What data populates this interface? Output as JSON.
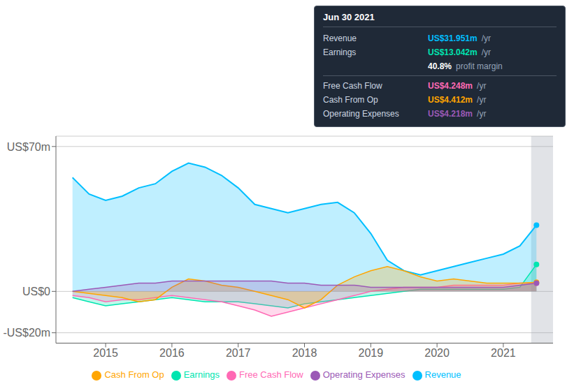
{
  "chart_data": {
    "type": "area",
    "x": [
      2014.5,
      2014.75,
      2015.0,
      2015.25,
      2015.5,
      2015.75,
      2016.0,
      2016.25,
      2016.5,
      2016.75,
      2017.0,
      2017.25,
      2017.5,
      2017.75,
      2018.0,
      2018.25,
      2018.5,
      2018.75,
      2019.0,
      2019.25,
      2019.5,
      2019.75,
      2020.0,
      2020.25,
      2020.5,
      2020.75,
      2021.0,
      2021.25,
      2021.5
    ],
    "series": [
      {
        "name": "Revenue",
        "color": "#00bfff",
        "values": [
          55,
          47,
          44,
          46,
          50,
          52,
          58,
          62,
          60,
          56,
          50,
          42,
          40,
          38,
          40,
          42,
          43,
          38,
          28,
          15,
          10,
          8,
          10,
          12,
          14,
          16,
          18,
          22,
          32
        ]
      },
      {
        "name": "Earnings",
        "color": "#00e5b0",
        "values": [
          -3,
          -5,
          -7,
          -6,
          -5,
          -4,
          -3,
          -4,
          -5,
          -5,
          -5,
          -6,
          -7,
          -8,
          -6,
          -5,
          -4,
          -3,
          -2,
          -1,
          0,
          1,
          1,
          1,
          1,
          1,
          1,
          2,
          13
        ]
      },
      {
        "name": "Free Cash Flow",
        "color": "#ff69b4",
        "values": [
          -2,
          -3,
          -5,
          -4,
          -4,
          -3,
          -2,
          -3,
          -4,
          -5,
          -7,
          -9,
          -12,
          -10,
          -8,
          -6,
          -4,
          -2,
          0,
          1,
          2,
          2,
          2,
          3,
          3,
          3,
          3,
          4,
          4
        ]
      },
      {
        "name": "Cash From Op",
        "color": "#ffa500",
        "values": [
          0,
          -1,
          -2,
          -3,
          -5,
          -4,
          2,
          6,
          5,
          3,
          2,
          0,
          -2,
          -4,
          -8,
          -4,
          3,
          7,
          10,
          12,
          10,
          7,
          5,
          6,
          5,
          4,
          4,
          4,
          4.4
        ]
      },
      {
        "name": "Operating Expenses",
        "color": "#9b59b6",
        "values": [
          0,
          1,
          2,
          3,
          4,
          4,
          5,
          5,
          5,
          5,
          5,
          5,
          5,
          4,
          4,
          3,
          3,
          3,
          2,
          2,
          2,
          2,
          2,
          2,
          2,
          2,
          2,
          3,
          4
        ]
      }
    ],
    "xlim": [
      2014.25,
      2021.75
    ],
    "xticks": [
      2015,
      2016,
      2017,
      2018,
      2019,
      2020,
      2021
    ],
    "ylim": [
      -25,
      75
    ],
    "yticks": [
      {
        "value": -20,
        "label": "-US$20m"
      },
      {
        "value": 0,
        "label": "US$0"
      },
      {
        "value": 70,
        "label": "US$70m"
      }
    ],
    "grid": true,
    "highlight_xrange": [
      2021.42,
      2021.75
    ],
    "tooltip_box": {
      "title": "Jun 30 2021",
      "rows": [
        {
          "label": "Revenue",
          "value": "US$31.951m",
          "unit": "/yr",
          "color": "#00bfff"
        },
        {
          "label": "Earnings",
          "value": "US$13.042m",
          "unit": "/yr",
          "color": "#00e5b0"
        },
        {
          "value": "40.8%",
          "unit": "profit margin",
          "color": "#ffffff"
        },
        {
          "label": "Free Cash Flow",
          "value": "US$4.248m",
          "unit": "/yr",
          "color": "#ff69b4"
        },
        {
          "label": "Cash From Op",
          "value": "US$4.412m",
          "unit": "/yr",
          "color": "#ffa500"
        },
        {
          "label": "Operating Expenses",
          "value": "US$4.218m",
          "unit": "/yr",
          "color": "#9b59b6"
        }
      ]
    }
  }
}
